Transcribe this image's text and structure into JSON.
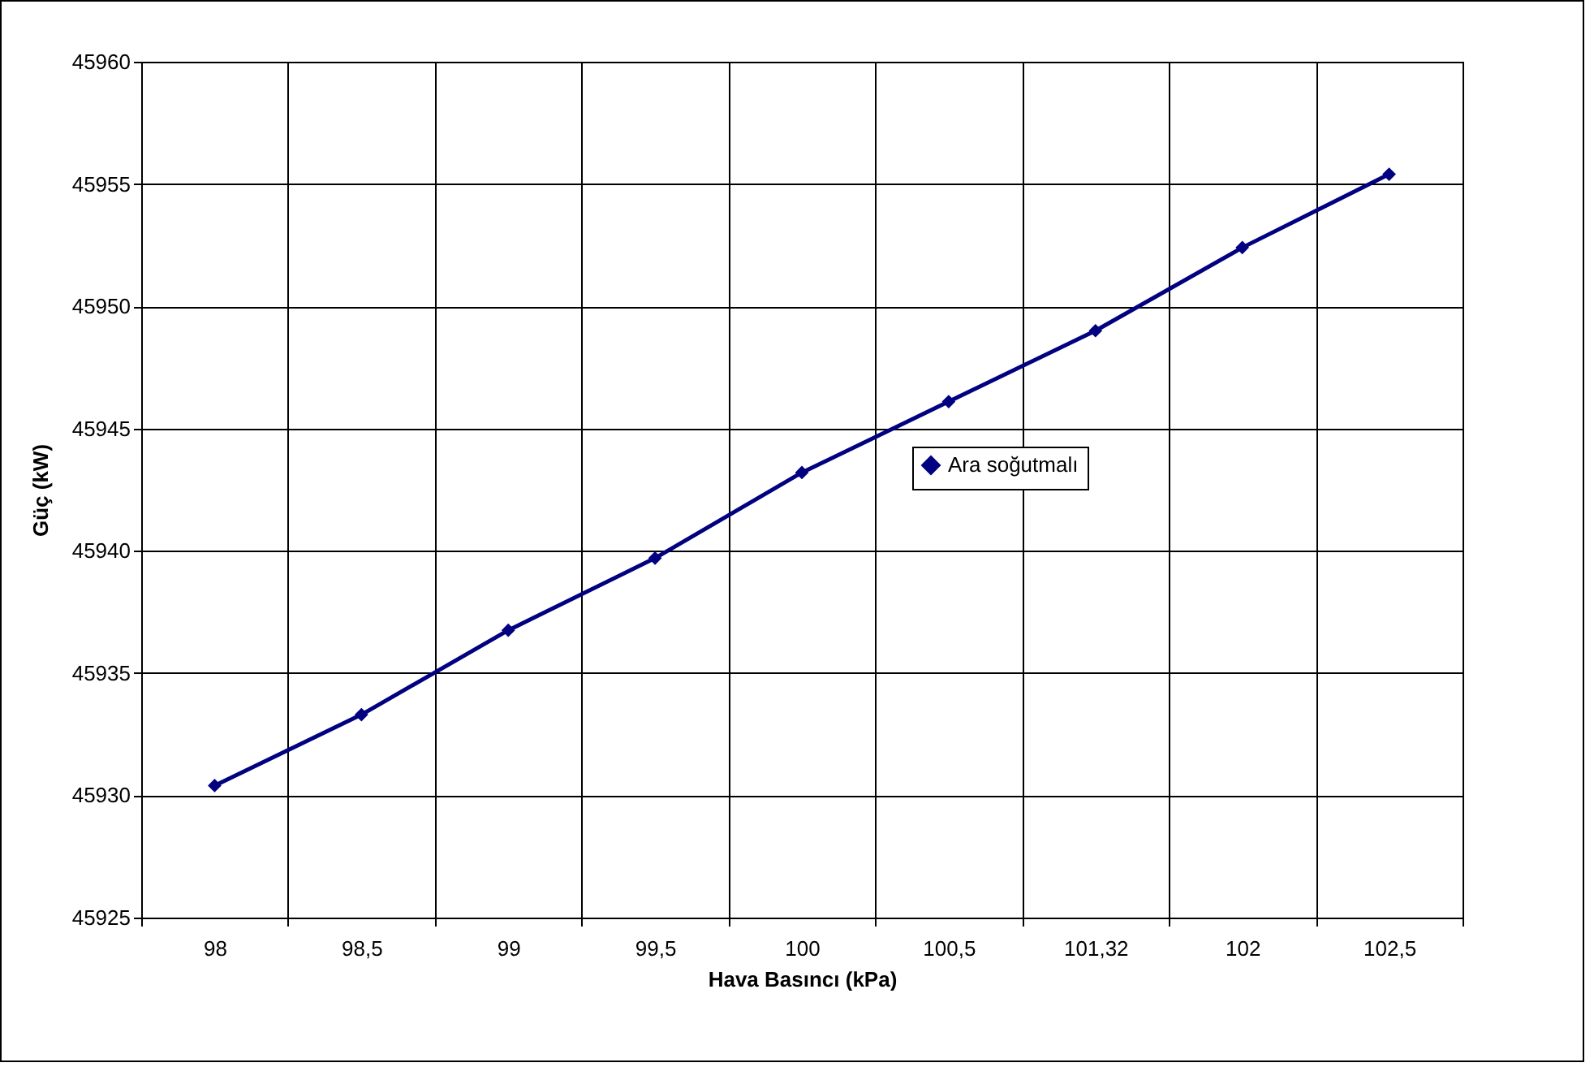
{
  "chart_data": {
    "type": "line",
    "xlabel": "Hava Basıncı (kPa)",
    "ylabel": "Güç (kW)",
    "categories": [
      "98",
      "98,5",
      "99",
      "99,5",
      "100",
      "100,5",
      "101,32",
      "102",
      "102,5"
    ],
    "series": [
      {
        "name": "Ara soğutmalı",
        "color": "#000080",
        "values": [
          45930.4,
          45933.3,
          45936.75,
          45939.7,
          45943.2,
          45946.1,
          45949.0,
          45952.4,
          45955.4
        ]
      }
    ],
    "ylim": [
      45925,
      45960
    ],
    "yticks": [
      45925,
      45930,
      45935,
      45940,
      45945,
      45950,
      45955,
      45960
    ],
    "grid": true,
    "legend": "right",
    "marker": "diamond",
    "line_style": "solid"
  }
}
